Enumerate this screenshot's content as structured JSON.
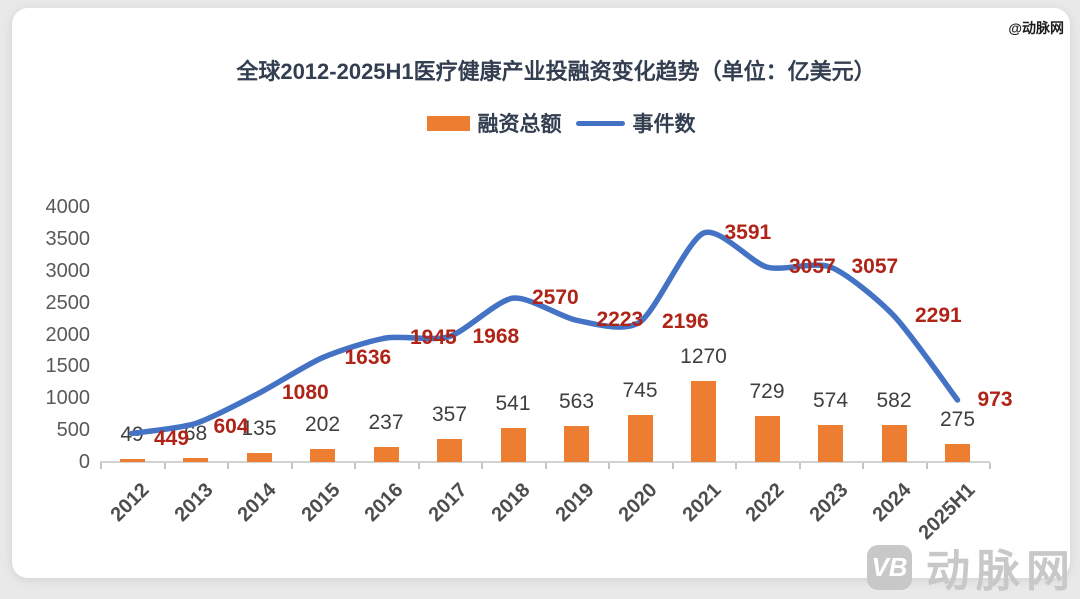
{
  "watermark_top": "@动脉网",
  "legend": {
    "bar_label": "融资总额",
    "line_label": "事件数"
  },
  "footer_logo": {
    "badge": "VB",
    "text": "动脉网"
  },
  "colors": {
    "bar": "#ED7D31",
    "line": "#4472C4",
    "line_label": "#B02418",
    "bar_label": "#3F3F3F",
    "axis_text": "#595959",
    "title_text": "#333F50"
  },
  "chart_data": {
    "type": "combo",
    "title": "全球2012-2025H1医疗健康产业投融资变化趋势（单位：亿美元）",
    "categories": [
      "2012",
      "2013",
      "2014",
      "2015",
      "2016",
      "2017",
      "2018",
      "2019",
      "2020",
      "2021",
      "2022",
      "2023",
      "2024",
      "2025H1"
    ],
    "series": [
      {
        "name": "融资总额",
        "type": "bar",
        "values": [
          49,
          68,
          135,
          202,
          237,
          357,
          541,
          563,
          745,
          1270,
          729,
          574,
          582,
          275
        ]
      },
      {
        "name": "事件数",
        "type": "line",
        "values": [
          449,
          604,
          1080,
          1636,
          1945,
          1968,
          2570,
          2223,
          2196,
          3591,
          3057,
          3057,
          2291,
          973
        ]
      }
    ],
    "xlabel": "",
    "ylabel": "",
    "ylim": [
      0,
      4000
    ],
    "yticks": [
      0,
      500,
      1000,
      1500,
      2000,
      2500,
      3000,
      3500,
      4000
    ],
    "grid": false,
    "legend_position": "top",
    "units": "亿美元"
  }
}
